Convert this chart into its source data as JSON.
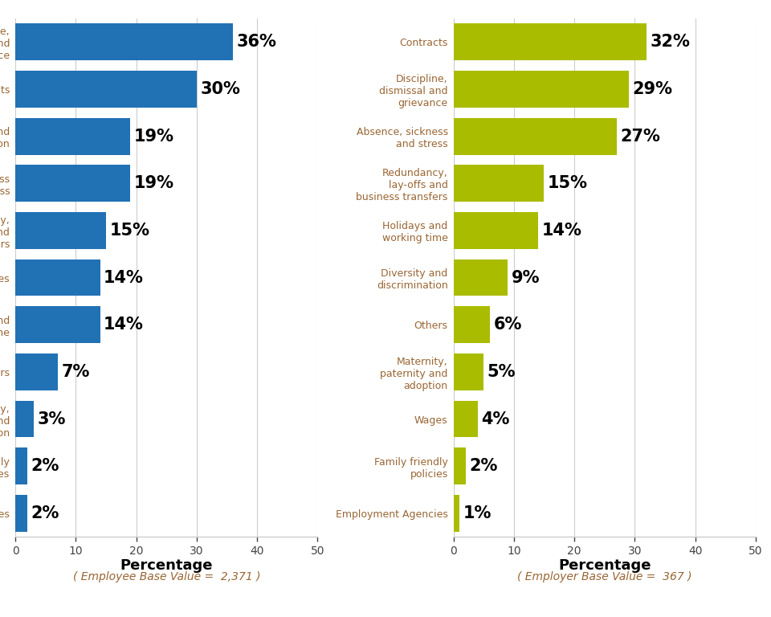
{
  "employee": {
    "categories": [
      "Discipline,\ndismissal and\ngrievance",
      "Contracts",
      "Diversity and\ndiscrimination",
      "Absence, sickness\nand stress",
      "Redundancy,\nlay-offs and\nbusiness transfers",
      "Wages",
      "Holidays and\nworking time",
      "Others",
      "Maternity,\npaternity and\nadoption",
      "Family friendly\npolicies",
      "Employment Agencies"
    ],
    "values": [
      36,
      30,
      19,
      19,
      15,
      14,
      14,
      7,
      3,
      2,
      2
    ],
    "bar_color": "#2171B5",
    "xlabel": "Percentage",
    "base_label": "( Employee Base Value =  2,371 )",
    "xlim": [
      0,
      50
    ]
  },
  "employer": {
    "categories": [
      "Contracts",
      "Discipline,\ndismissal and\ngrievance",
      "Absence, sickness\nand stress",
      "Redundancy,\nlay-offs and\nbusiness transfers",
      "Holidays and\nworking time",
      "Diversity and\ndiscrimination",
      "Others",
      "Maternity,\npaternity and\nadoption",
      "Wages",
      "Family friendly\npolicies",
      "Employment Agencies"
    ],
    "values": [
      32,
      29,
      27,
      15,
      14,
      9,
      6,
      5,
      4,
      2,
      1
    ],
    "bar_color": "#AABC00",
    "xlabel": "Percentage",
    "base_label": "( Employer Base Value =  367 )",
    "xlim": [
      0,
      50
    ]
  },
  "label_color": "#996633",
  "grid_color": "#CCCCCC",
  "bg_color": "#FFFFFF",
  "tick_color": "#444444",
  "xlabel_fontsize": 13,
  "base_fontsize": 10,
  "bar_label_fontsize": 15,
  "ytick_fontsize": 9,
  "xtick_fontsize": 10
}
